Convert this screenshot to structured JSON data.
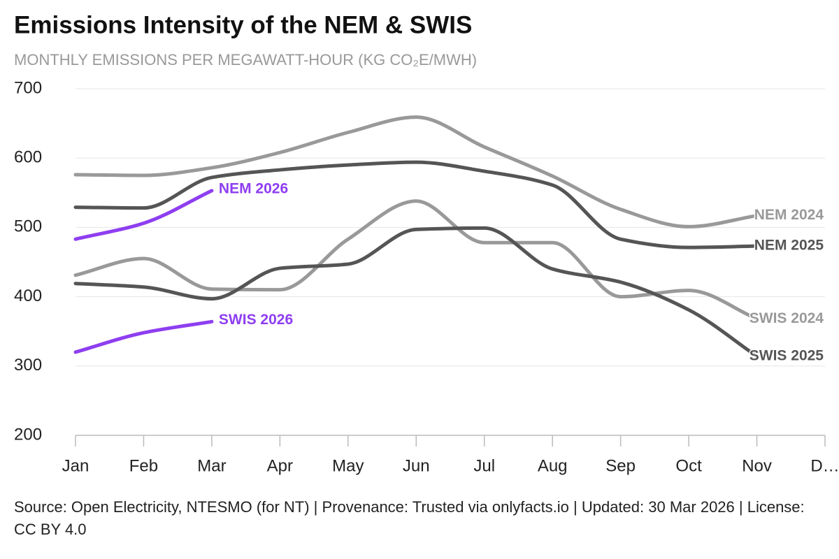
{
  "chart_data": {
    "type": "line",
    "title": "Emissions Intensity of the NEM & SWIS",
    "subtitle": "MONTHLY EMISSIONS PER MEGAWATT-HOUR (KG CO₂E/MWH)",
    "categories": [
      "Jan",
      "Feb",
      "Mar",
      "Apr",
      "May",
      "Jun",
      "Jul",
      "Aug",
      "Sep",
      "Oct",
      "Nov",
      "D…"
    ],
    "series": [
      {
        "name": "NEM 2024",
        "color": "#999999",
        "values": [
          576,
          575,
          586,
          608,
          637,
          659,
          616,
          574,
          526,
          501,
          517,
          null
        ]
      },
      {
        "name": "NEM 2025",
        "color": "#555555",
        "values": [
          529,
          528,
          572,
          583,
          590,
          594,
          581,
          561,
          483,
          471,
          473,
          null
        ]
      },
      {
        "name": "SWIS 2024",
        "color": "#999999",
        "values": [
          431,
          455,
          411,
          410,
          483,
          538,
          478,
          478,
          400,
          409,
          368,
          null
        ]
      },
      {
        "name": "SWIS 2025",
        "color": "#555555",
        "values": [
          419,
          414,
          397,
          441,
          447,
          497,
          499,
          440,
          421,
          381,
          314,
          null
        ]
      },
      {
        "name": "NEM 2026",
        "color": "#8e3ef0",
        "values": [
          483,
          506,
          553,
          null,
          null,
          null,
          null,
          null,
          null,
          null,
          null,
          null
        ]
      },
      {
        "name": "SWIS 2026",
        "color": "#8e3ef0",
        "values": [
          320,
          348,
          364,
          null,
          null,
          null,
          null,
          null,
          null,
          null,
          null,
          null
        ]
      }
    ],
    "ylim": [
      200,
      700
    ],
    "yticks": [
      200,
      300,
      400,
      500,
      600,
      700
    ],
    "grid": true,
    "source": "Source: Open Electricity, NTESMO (for NT) | Provenance: Trusted via onlyfacts.io | Updated: 30 Mar 2026 | License: CC BY 4.0"
  }
}
